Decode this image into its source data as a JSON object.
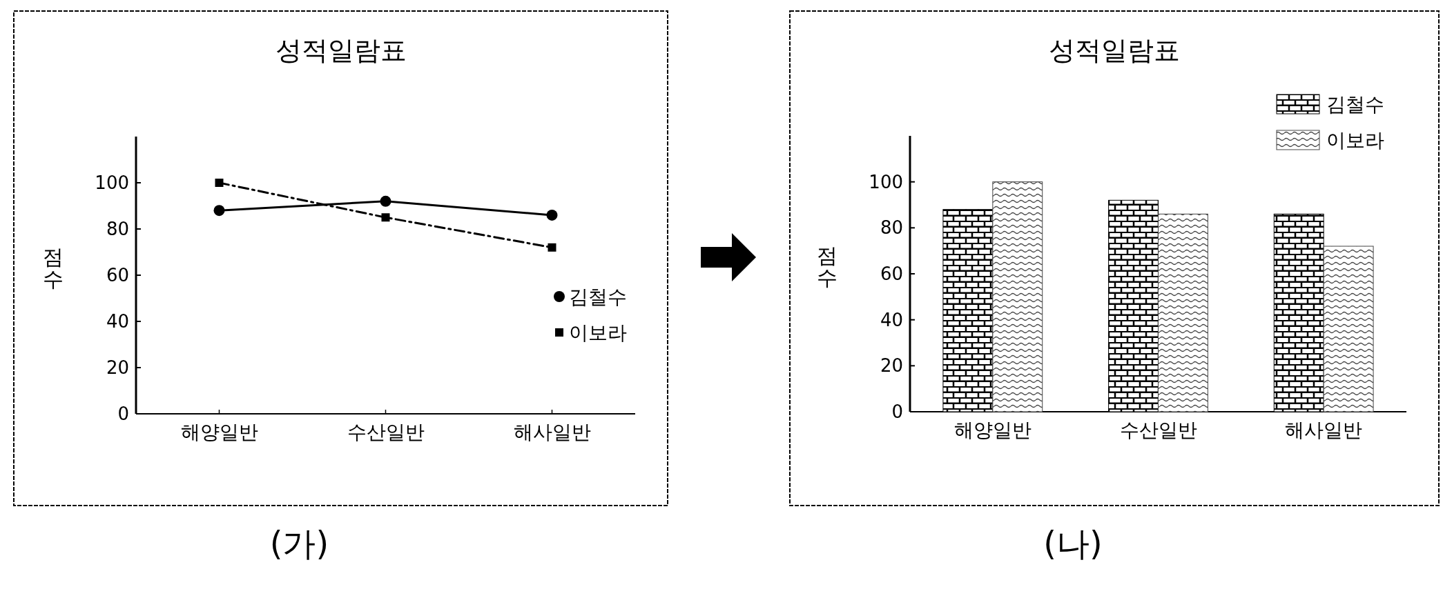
{
  "chart_data": [
    {
      "type": "line",
      "title": "성적일람표",
      "ylabel": "점수",
      "categories": [
        "해양일반",
        "수산일반",
        "해사일반"
      ],
      "series": [
        {
          "name": "김철수",
          "color": "#000000",
          "values": [
            88,
            92,
            86
          ],
          "marker": "circle",
          "line_style": "solid"
        },
        {
          "name": "이보라",
          "color": "#000000",
          "values": [
            100,
            85,
            72
          ],
          "marker": "square",
          "line_style": "dashed"
        }
      ],
      "ylim": [
        0,
        120
      ],
      "yticks": [
        0,
        20,
        40,
        60,
        80,
        100
      ],
      "legend": "bottom right",
      "annotations": [
        "(가)"
      ]
    },
    {
      "type": "bar",
      "title": "성적일람표",
      "ylabel": "점수",
      "categories": [
        "해양일반",
        "수산일반",
        "해사일반"
      ],
      "series": [
        {
          "name": "김철수",
          "color": "#000000",
          "values": [
            88,
            92,
            86
          ]
        },
        {
          "name": "이보라",
          "color": "#444444",
          "values": [
            100,
            86,
            72
          ]
        }
      ],
      "ylim": [
        0,
        120
      ],
      "yticks": [
        0,
        20,
        40,
        60,
        80,
        100
      ],
      "legend": "top right",
      "annotations": [
        "(나)"
      ]
    }
  ]
}
